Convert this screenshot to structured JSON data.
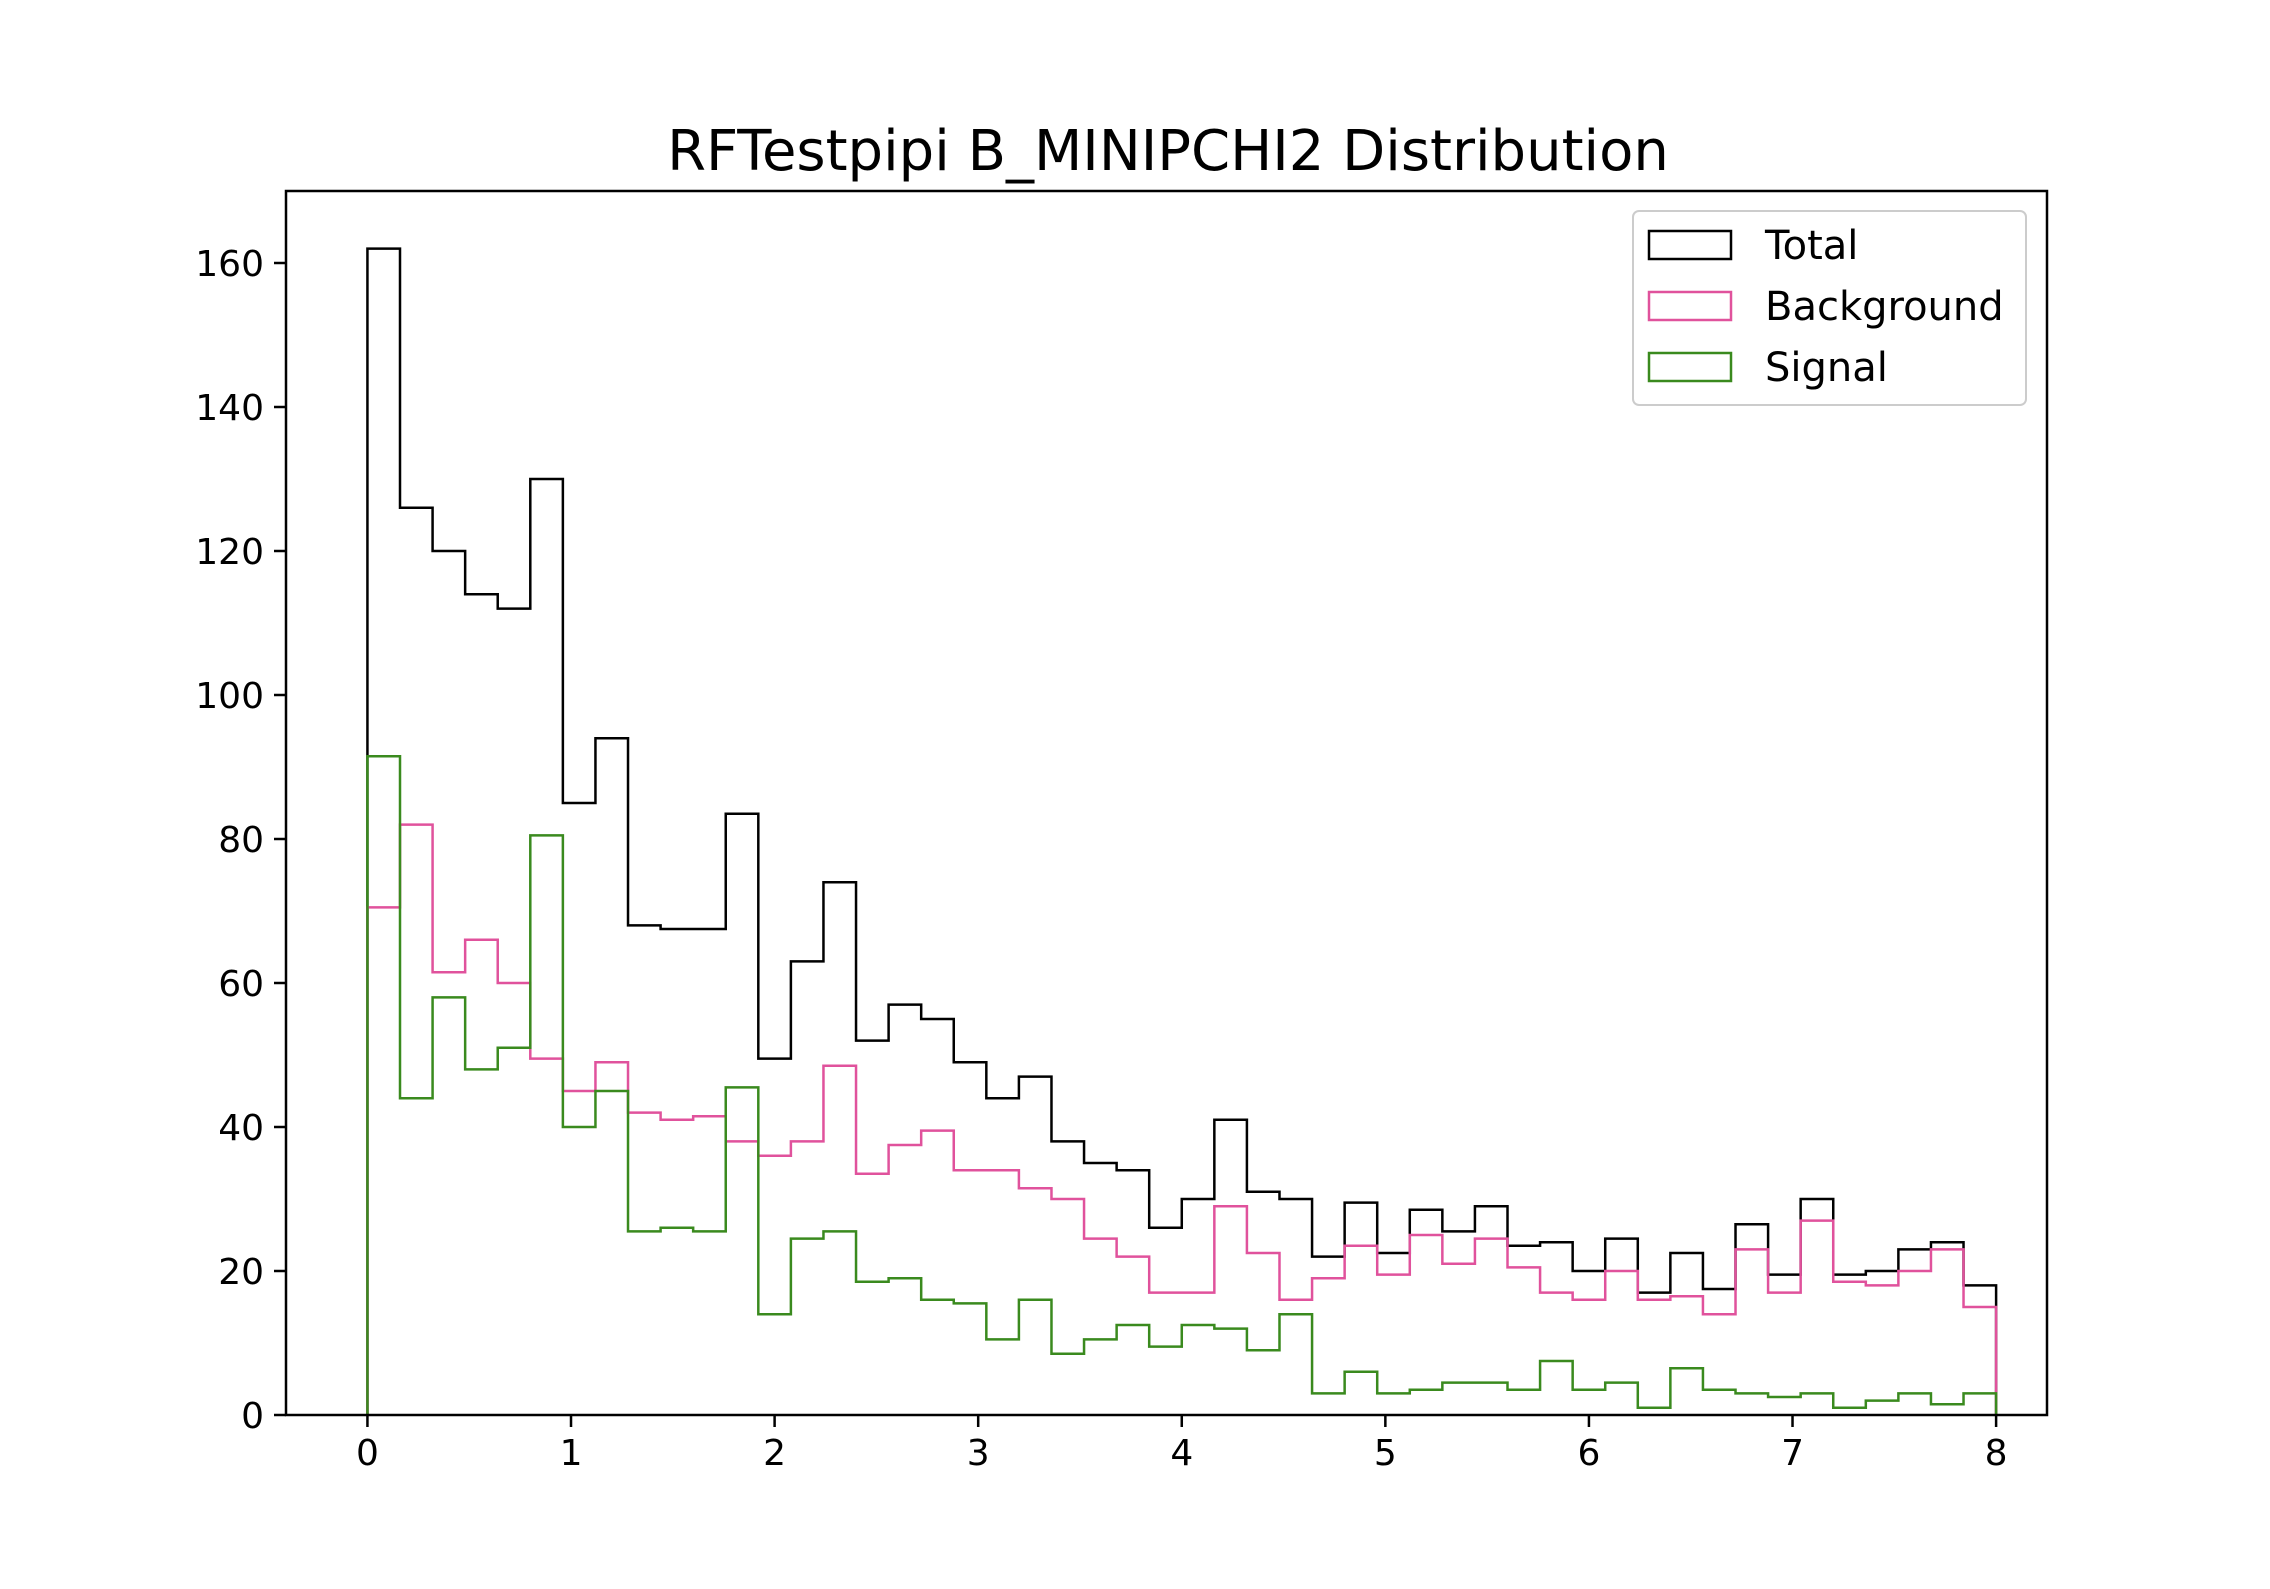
{
  "chart_data": {
    "type": "histogram",
    "title": "RFTestpipi B_MINIPCHI2 Distribution",
    "xlabel": "",
    "ylabel": "",
    "xlim": [
      -0.4,
      8.25
    ],
    "ylim": [
      0,
      170
    ],
    "x_ticks": [
      0,
      1,
      2,
      3,
      4,
      5,
      6,
      7,
      8
    ],
    "y_ticks": [
      0,
      20,
      40,
      60,
      80,
      100,
      120,
      140,
      160
    ],
    "bin_start": 0,
    "bin_width": 0.16,
    "grid": false,
    "legend_position": "top-right",
    "series": [
      {
        "name": "Total",
        "color": "#000000",
        "values": [
          162,
          126,
          120,
          114,
          112,
          130,
          85,
          94,
          68,
          67.5,
          67.5,
          83.5,
          49.5,
          63,
          74,
          52,
          57,
          55,
          49,
          44,
          47,
          38,
          35,
          34,
          26,
          30,
          41,
          31,
          30,
          22,
          29.5,
          22.5,
          28.5,
          25.5,
          29,
          23.5,
          24,
          20,
          24.5,
          17,
          22.5,
          17.5,
          26.5,
          19.5,
          30,
          19.5,
          20,
          23,
          24,
          18
        ]
      },
      {
        "name": "Background",
        "color": "#e0529c",
        "values": [
          70.5,
          82,
          61.5,
          66,
          60,
          49.5,
          45,
          49,
          42,
          41,
          41.5,
          38,
          36,
          38,
          48.5,
          33.5,
          37.5,
          39.5,
          34,
          34,
          31.5,
          30,
          24.5,
          22,
          17,
          17,
          29,
          22.5,
          16,
          19,
          23.5,
          19.5,
          25,
          21,
          24.5,
          20.5,
          17,
          16,
          20,
          16,
          16.5,
          14,
          23,
          17,
          27,
          18.5,
          18,
          20,
          23,
          15
        ]
      },
      {
        "name": "Signal",
        "color": "#3a8a1e",
        "values": [
          91.5,
          44,
          58,
          48,
          51,
          80.5,
          40,
          45,
          25.5,
          26,
          25.5,
          45.5,
          14,
          24.5,
          25.5,
          18.5,
          19,
          16,
          15.5,
          10.5,
          16,
          8.5,
          10.5,
          12.5,
          9.5,
          12.5,
          12,
          9,
          14,
          3,
          6,
          3,
          3.5,
          4.5,
          4.5,
          3.5,
          7.5,
          3.5,
          4.5,
          1,
          6.5,
          3.5,
          3,
          2.5,
          3,
          1,
          2,
          3,
          1.5,
          3
        ]
      }
    ]
  }
}
